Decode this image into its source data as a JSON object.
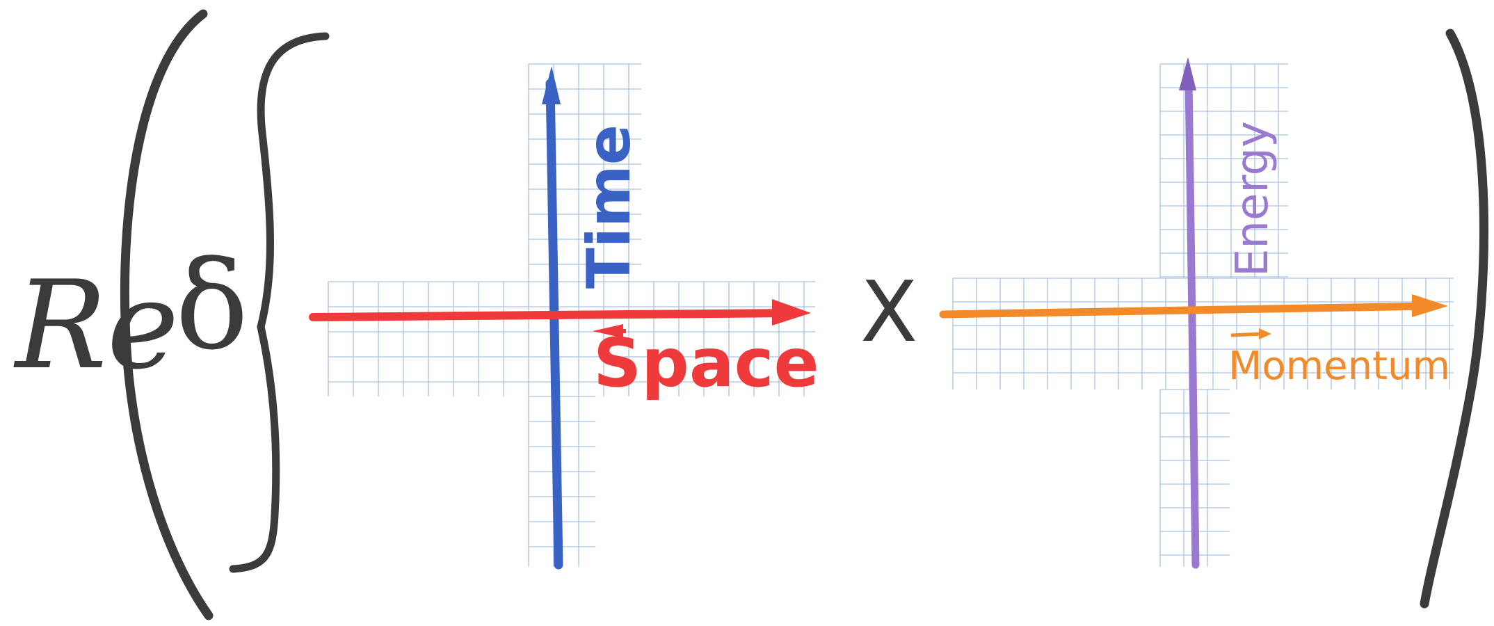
{
  "expression": {
    "real_part": "Re",
    "delta": "δ",
    "times": "X"
  },
  "diagram_left": {
    "vertical_axis_label": "Time",
    "horizontal_axis_label": "Space",
    "vertical_axis_color": "#3a62c4",
    "horizontal_axis_color": "#ee3a3a"
  },
  "diagram_right": {
    "vertical_axis_label": "Energy",
    "horizontal_axis_label": "Momentum",
    "vertical_axis_color": "#9a7ad0",
    "horizontal_axis_color": "#f28a2a"
  },
  "colors": {
    "ink": "#3b3b3b",
    "grid": "#a9c2e6"
  }
}
